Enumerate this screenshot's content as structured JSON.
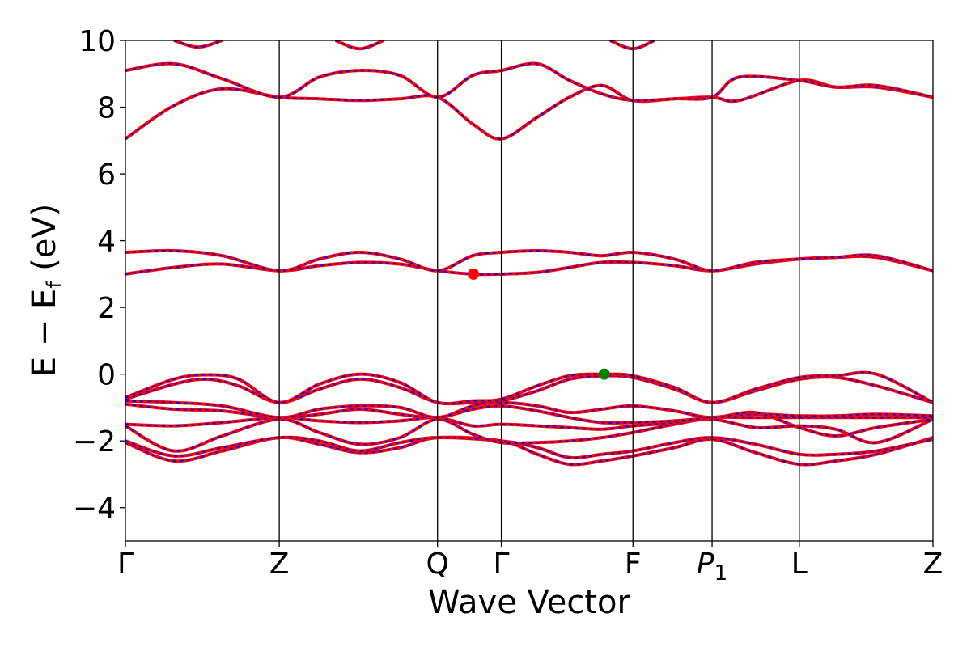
{
  "chart_data": {
    "type": "line",
    "title": "",
    "xlabel": "Wave Vector",
    "ylabel": "E − E",
    "ylabel_sub": "f",
    "ylabel_unit": " (eV)",
    "ylim": [
      -5,
      10
    ],
    "yticks": [
      -4,
      -2,
      0,
      2,
      4,
      6,
      8,
      10
    ],
    "ytick_labels": [
      "−4",
      "−2",
      "0",
      "2",
      "4",
      "6",
      "8",
      "10"
    ],
    "xlim": [
      0,
      1
    ],
    "kpoints": [
      {
        "label": "Γ",
        "pos": 0.0
      },
      {
        "label": "Z",
        "pos": 0.1905
      },
      {
        "label": "Q",
        "pos": 0.3865
      },
      {
        "label": "Γ",
        "pos": 0.4655
      },
      {
        "label": "F",
        "pos": 0.6285
      },
      {
        "label": "P",
        "sub": "1",
        "pos": 0.7265
      },
      {
        "label": "L",
        "pos": 0.8345
      },
      {
        "label": "Z",
        "pos": 1.0
      }
    ],
    "line_style": {
      "base_color": "#ff0000",
      "overlay_color": "#0000ff",
      "overlay_dashed": true
    },
    "bands": [
      {
        "name": "",
        "x": [
          0.0,
          0.06,
          0.12,
          0.1905,
          0.24,
          0.29,
          0.34,
          0.3865,
          0.4655,
          0.51,
          0.55,
          0.59,
          0.6285,
          0.68,
          0.7265,
          0.78,
          0.8345,
          0.88,
          0.93,
          1.0
        ],
        "y": [
          -2.05,
          -2.6,
          -2.3,
          -1.9,
          -2.1,
          -2.35,
          -2.2,
          -1.9,
          -2.0,
          -2.4,
          -2.7,
          -2.6,
          -2.45,
          -2.2,
          -1.95,
          -2.35,
          -2.7,
          -2.6,
          -2.4,
          -1.9
        ]
      },
      {
        "name": "",
        "x": [
          0.0,
          0.06,
          0.12,
          0.1905,
          0.24,
          0.29,
          0.34,
          0.3865,
          0.4655,
          0.51,
          0.55,
          0.59,
          0.6285,
          0.68,
          0.7265,
          0.78,
          0.8345,
          0.88,
          0.93,
          1.0
        ],
        "y": [
          -2.0,
          -2.45,
          -2.2,
          -1.9,
          -2.0,
          -2.3,
          -2.05,
          -1.9,
          -2.0,
          -2.2,
          -2.5,
          -2.4,
          -2.3,
          -2.05,
          -1.9,
          -2.1,
          -2.4,
          -2.4,
          -2.3,
          -1.95
        ]
      },
      {
        "name": "",
        "x": [
          0.0,
          0.06,
          0.12,
          0.1905,
          0.24,
          0.29,
          0.34,
          0.3865,
          0.43,
          0.4655,
          0.51,
          0.55,
          0.59,
          0.6285,
          0.68,
          0.7265,
          0.78,
          0.8345,
          0.88,
          0.93,
          1.0
        ],
        "y": [
          -1.55,
          -2.3,
          -1.85,
          -1.35,
          -1.75,
          -2.1,
          -1.9,
          -1.35,
          -1.8,
          -2.05,
          -2.05,
          -2.0,
          -1.9,
          -1.75,
          -1.5,
          -1.35,
          -1.6,
          -1.55,
          -1.65,
          -2.05,
          -1.35
        ]
      },
      {
        "name": "",
        "x": [
          0.0,
          0.06,
          0.12,
          0.1905,
          0.24,
          0.29,
          0.34,
          0.3865,
          0.43,
          0.4655,
          0.51,
          0.55,
          0.59,
          0.6285,
          0.68,
          0.7265,
          0.78,
          0.8345,
          0.88,
          0.93,
          1.0
        ],
        "y": [
          -1.5,
          -1.55,
          -1.45,
          -1.3,
          -1.4,
          -1.45,
          -1.4,
          -1.3,
          -1.55,
          -1.5,
          -1.55,
          -1.6,
          -1.65,
          -1.55,
          -1.45,
          -1.3,
          -1.3,
          -1.3,
          -1.3,
          -1.3,
          -1.3
        ]
      },
      {
        "name": "",
        "x": [
          0.0,
          0.06,
          0.12,
          0.1905,
          0.24,
          0.29,
          0.34,
          0.3865,
          0.43,
          0.4655,
          0.51,
          0.55,
          0.59,
          0.6285,
          0.68,
          0.7265,
          0.78,
          0.8345,
          0.88,
          0.93,
          1.0
        ],
        "y": [
          -0.9,
          -1.05,
          -1.1,
          -1.3,
          -1.2,
          -1.05,
          -1.2,
          -1.3,
          -1.05,
          -0.95,
          -1.1,
          -1.3,
          -1.45,
          -1.45,
          -1.4,
          -1.3,
          -1.2,
          -1.25,
          -1.25,
          -1.2,
          -1.25
        ]
      },
      {
        "name": "",
        "x": [
          0.0,
          0.06,
          0.12,
          0.1905,
          0.24,
          0.29,
          0.34,
          0.3865,
          0.43,
          0.4655,
          0.51,
          0.55,
          0.59,
          0.6285,
          0.68,
          0.7265,
          0.78,
          0.8345,
          0.88,
          0.93,
          1.0
        ],
        "y": [
          -0.8,
          -0.85,
          -0.95,
          -1.3,
          -1.05,
          -0.95,
          -1.0,
          -1.3,
          -0.95,
          -0.85,
          -0.95,
          -1.15,
          -1.05,
          -0.95,
          -1.1,
          -1.3,
          -1.15,
          -1.6,
          -1.85,
          -1.6,
          -1.35
        ]
      },
      {
        "name": "",
        "x": [
          0.0,
          0.06,
          0.1,
          0.14,
          0.1905,
          0.24,
          0.29,
          0.34,
          0.3865,
          0.43,
          0.4655,
          0.51,
          0.55,
          0.59,
          0.6285,
          0.68,
          0.7265,
          0.78,
          0.8345,
          0.88,
          0.93,
          1.0
        ],
        "y": [
          -0.75,
          -0.3,
          -0.15,
          -0.35,
          -0.85,
          -0.45,
          -0.15,
          -0.4,
          -0.85,
          -0.85,
          -0.8,
          -0.5,
          -0.15,
          -0.05,
          -0.1,
          -0.45,
          -0.85,
          -0.5,
          -0.15,
          -0.1,
          -0.35,
          -0.85
        ]
      },
      {
        "name": "",
        "x": [
          0.0,
          0.06,
          0.1,
          0.14,
          0.1905,
          0.24,
          0.29,
          0.34,
          0.3865,
          0.43,
          0.4655,
          0.51,
          0.55,
          0.59,
          0.6285,
          0.68,
          0.7265,
          0.78,
          0.8345,
          0.88,
          0.93,
          1.0
        ],
        "y": [
          -0.7,
          -0.15,
          -0.02,
          -0.15,
          -0.85,
          -0.3,
          0.0,
          -0.25,
          -0.85,
          -0.8,
          -0.75,
          -0.35,
          -0.05,
          0.0,
          -0.05,
          -0.4,
          -0.85,
          -0.45,
          -0.1,
          -0.05,
          0.0,
          -0.85
        ]
      },
      {
        "name": "",
        "x": [
          0.0,
          0.06,
          0.12,
          0.1905,
          0.24,
          0.29,
          0.34,
          0.3865,
          0.43,
          0.4655,
          0.51,
          0.55,
          0.59,
          0.6285,
          0.68,
          0.7265,
          0.78,
          0.8345,
          0.88,
          0.93,
          1.0
        ],
        "y": [
          3.0,
          3.2,
          3.3,
          3.1,
          3.25,
          3.35,
          3.3,
          3.1,
          3.0,
          3.0,
          3.05,
          3.2,
          3.35,
          3.35,
          3.25,
          3.1,
          3.3,
          3.45,
          3.5,
          3.5,
          3.1
        ]
      },
      {
        "name": "",
        "x": [
          0.0,
          0.06,
          0.12,
          0.1905,
          0.24,
          0.29,
          0.34,
          0.3865,
          0.43,
          0.4655,
          0.51,
          0.55,
          0.59,
          0.6285,
          0.68,
          0.7265,
          0.78,
          0.8345,
          0.88,
          0.93,
          1.0
        ],
        "y": [
          3.65,
          3.7,
          3.55,
          3.1,
          3.45,
          3.65,
          3.45,
          3.1,
          3.55,
          3.65,
          3.7,
          3.65,
          3.55,
          3.65,
          3.45,
          3.1,
          3.35,
          3.45,
          3.5,
          3.55,
          3.1
        ]
      },
      {
        "name": "",
        "x": [
          0.0,
          0.06,
          0.12,
          0.1905,
          0.24,
          0.29,
          0.34,
          0.3865,
          0.43,
          0.4655,
          0.51,
          0.55,
          0.59,
          0.6285,
          0.68,
          0.7265,
          0.76,
          0.8345,
          0.88,
          0.93,
          1.0
        ],
        "y": [
          7.05,
          8.05,
          8.55,
          8.3,
          8.25,
          8.2,
          8.25,
          8.3,
          7.5,
          7.05,
          7.7,
          8.3,
          8.65,
          8.2,
          8.25,
          8.3,
          8.2,
          8.8,
          8.6,
          8.6,
          8.3
        ]
      },
      {
        "name": "",
        "x": [
          0.0,
          0.06,
          0.12,
          0.1905,
          0.24,
          0.29,
          0.34,
          0.3865,
          0.43,
          0.4655,
          0.51,
          0.55,
          0.59,
          0.6285,
          0.68,
          0.7265,
          0.76,
          0.8345,
          0.88,
          0.93,
          1.0
        ],
        "y": [
          9.1,
          9.3,
          8.85,
          8.3,
          8.9,
          9.1,
          8.95,
          8.3,
          8.95,
          9.1,
          9.3,
          8.8,
          8.4,
          8.2,
          8.25,
          8.3,
          8.9,
          8.8,
          8.6,
          8.65,
          8.3
        ]
      },
      {
        "name": "",
        "x": [
          0.06,
          0.09,
          0.12
        ],
        "y": [
          10.0,
          9.8,
          10.0
        ]
      },
      {
        "name": "",
        "x": [
          0.26,
          0.29,
          0.32
        ],
        "y": [
          10.0,
          9.75,
          10.0
        ]
      },
      {
        "name": "",
        "x": [
          0.6,
          0.6285,
          0.655
        ],
        "y": [
          10.0,
          9.75,
          10.0
        ]
      }
    ],
    "markers": [
      {
        "name": "",
        "x": 0.431,
        "y": 3.0,
        "color": "#ff0000"
      },
      {
        "name": "",
        "x": 0.593,
        "y": 0.0,
        "color": "#008000"
      }
    ]
  }
}
